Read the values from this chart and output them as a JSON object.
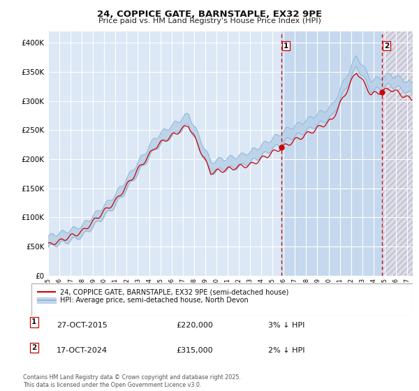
{
  "title1": "24, COPPICE GATE, BARNSTAPLE, EX32 9PE",
  "title2": "Price paid vs. HM Land Registry's House Price Index (HPI)",
  "legend_line1": "24, COPPICE GATE, BARNSTAPLE, EX32 9PE (semi-detached house)",
  "legend_line2": "HPI: Average price, semi-detached house, North Devon",
  "sale1_label": "1",
  "sale1_date": "27-OCT-2015",
  "sale1_price": 220000,
  "sale1_pct": "3% ↓ HPI",
  "sale2_label": "2",
  "sale2_date": "17-OCT-2024",
  "sale2_price": 315000,
  "sale2_pct": "2% ↓ HPI",
  "sale1_year": 2015.82,
  "sale2_year": 2024.79,
  "hpi_color_fill": "#b8d0e8",
  "hpi_color_line": "#8ab4d4",
  "price_color": "#cc0000",
  "vline_color": "#cc0000",
  "bg_pre": "#dce8f5",
  "bg_owned": "#c5d8ee",
  "bg_future_fill": "#dcdce8",
  "grid_color": "#ffffff",
  "ylim": [
    0,
    420000
  ],
  "yticks": [
    0,
    50000,
    100000,
    150000,
    200000,
    250000,
    300000,
    350000,
    400000
  ],
  "xlim_start": 1995.0,
  "xlim_end": 2027.5,
  "footnote": "Contains HM Land Registry data © Crown copyright and database right 2025.\nThis data is licensed under the Open Government Licence v3.0."
}
